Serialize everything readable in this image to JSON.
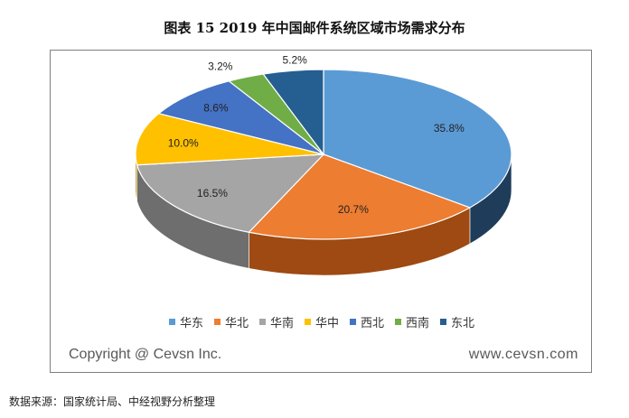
{
  "title": "图表 15  2019 年中国邮件系统区域市场需求分布",
  "chart_data": {
    "type": "pie",
    "style": "3d",
    "labels": [
      "华东",
      "华北",
      "华南",
      "华中",
      "西北",
      "西南",
      "东北"
    ],
    "values": [
      35.8,
      20.7,
      16.5,
      10.0,
      8.6,
      3.2,
      5.2
    ],
    "value_labels": [
      "35.8%",
      "20.7%",
      "16.5%",
      "10.0%",
      "8.6%",
      "3.2%",
      "5.2%"
    ],
    "colors": [
      "#5b9bd5",
      "#ed7d31",
      "#a5a5a5",
      "#ffc000",
      "#4472c4",
      "#70ad47",
      "#255e91"
    ],
    "side_colors": [
      "#1f3d5a",
      "#9e4a12",
      "#6e6e6e",
      "#b38600",
      "#2a4a8a",
      "#4a7a2c",
      "#173c5e"
    ],
    "legend_position": "bottom"
  },
  "watermark": {
    "left": "Copyright @ Cevsn Inc.",
    "right": "www.cevsn.com"
  },
  "source": "数据来源：国家统计局、中经视野分析整理"
}
